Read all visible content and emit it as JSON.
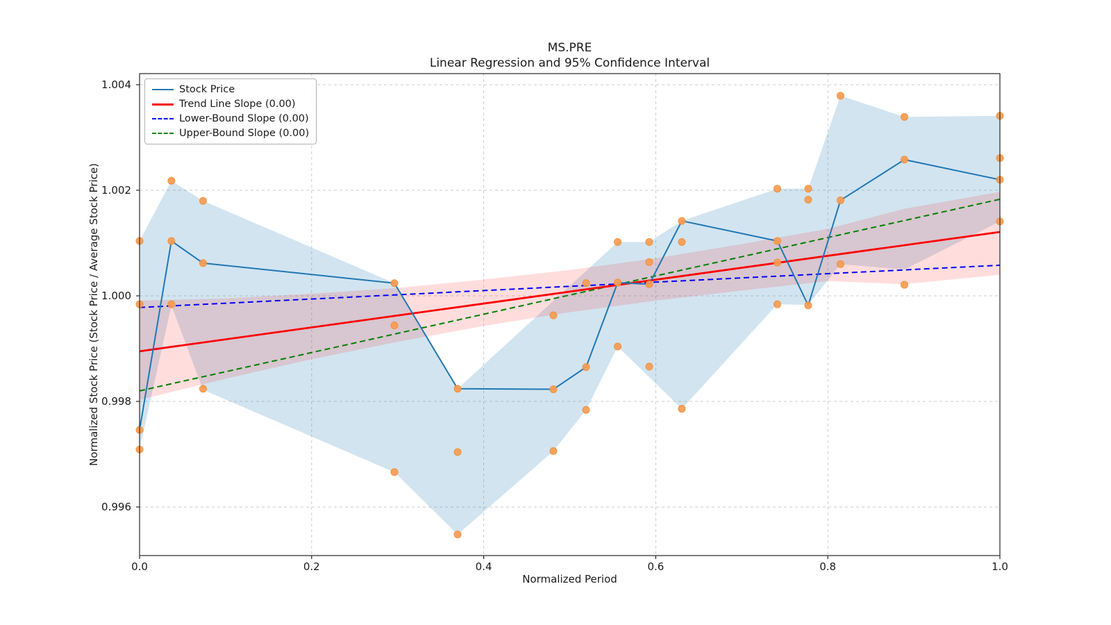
{
  "chart_data": {
    "type": "line",
    "title": "MS.PRE",
    "subtitle": "Linear Regression and 95% Confidence Interval",
    "xlabel": "Normalized Period",
    "ylabel": "Normalized Stock Price (Stock Price / Average Stock Price)",
    "xlim": [
      0,
      1
    ],
    "ylim": [
      0.99508,
      1.00421
    ],
    "xticks": [
      0.0,
      0.2,
      0.4,
      0.6,
      0.8,
      1.0
    ],
    "xtick_labels": [
      "0.0",
      "0.2",
      "0.4",
      "0.6",
      "0.8",
      "1.0"
    ],
    "yticks": [
      0.996,
      0.998,
      1.0,
      1.002,
      1.004
    ],
    "ytick_labels": [
      "0.996",
      "0.998",
      "1.000",
      "1.002",
      "1.004"
    ],
    "grid": true,
    "legend_position": "upper-left",
    "series": [
      {
        "name": "Stock Price",
        "color": "#1f77b4",
        "style": "solid",
        "width": 2,
        "x": [
          0,
          0.037,
          0.0738,
          0.2962,
          0.3697,
          0.481,
          0.519,
          0.5557,
          0.5924,
          0.6303,
          0.7413,
          0.7772,
          0.8147,
          0.889,
          1.0
        ],
        "y": [
          0.99746,
          1.00104,
          1.00062,
          1.00024,
          0.99824,
          0.99823,
          0.99865,
          1.00025,
          1.00022,
          1.00142,
          1.00104,
          0.99982,
          1.00181,
          1.00258,
          1.0022
        ]
      },
      {
        "name": "Trend Line Slope (0.00)",
        "color": "#ff0000",
        "style": "solid",
        "width": 2.8,
        "x": [
          0,
          1
        ],
        "y": [
          0.99895,
          1.00121
        ]
      },
      {
        "name": "Lower-Bound Slope (0.00)",
        "color": "#0000ff",
        "style": "dashed",
        "width": 2,
        "x": [
          0,
          1
        ],
        "y": [
          0.99978,
          1.00058
        ]
      },
      {
        "name": "Upper-Bound Slope (0.00)",
        "color": "#008000",
        "style": "dashed",
        "width": 2,
        "x": [
          0,
          1
        ],
        "y": [
          0.9982,
          1.00183
        ]
      }
    ],
    "scatter": {
      "name": "price-points",
      "color": "#f99c52",
      "edge_color": "#ef8d2f",
      "points": [
        [
          0,
          1.00104
        ],
        [
          0,
          0.99984
        ],
        [
          0,
          0.99746
        ],
        [
          0,
          0.99709
        ],
        [
          0.037,
          1.00218
        ],
        [
          0.037,
          1.00104
        ],
        [
          0.037,
          0.99984
        ],
        [
          0.0738,
          1.0018
        ],
        [
          0.0738,
          1.00062
        ],
        [
          0.0738,
          0.99824
        ],
        [
          0.2962,
          1.00024
        ],
        [
          0.2962,
          0.99944
        ],
        [
          0.2962,
          0.99666
        ],
        [
          0.3697,
          0.99824
        ],
        [
          0.3697,
          0.99704
        ],
        [
          0.3697,
          0.99548
        ],
        [
          0.481,
          0.99963
        ],
        [
          0.481,
          0.99823
        ],
        [
          0.481,
          0.99706
        ],
        [
          0.519,
          1.00024
        ],
        [
          0.519,
          0.99865
        ],
        [
          0.519,
          0.99784
        ],
        [
          0.5557,
          1.00102
        ],
        [
          0.5557,
          1.00025
        ],
        [
          0.5557,
          0.99904
        ],
        [
          0.5924,
          1.00102
        ],
        [
          0.5924,
          1.00064
        ],
        [
          0.5924,
          1.00022
        ],
        [
          0.5924,
          0.99866
        ],
        [
          0.6303,
          1.00142
        ],
        [
          0.6303,
          1.00102
        ],
        [
          0.6303,
          0.99786
        ],
        [
          0.7413,
          1.00203
        ],
        [
          0.7413,
          1.00104
        ],
        [
          0.7413,
          1.00063
        ],
        [
          0.7413,
          0.99984
        ],
        [
          0.7772,
          1.00203
        ],
        [
          0.7772,
          1.00182
        ],
        [
          0.7772,
          0.99982
        ],
        [
          0.8147,
          1.00379
        ],
        [
          0.8147,
          1.00181
        ],
        [
          0.8147,
          1.0006
        ],
        [
          0.889,
          1.00339
        ],
        [
          0.889,
          1.00258
        ],
        [
          0.889,
          1.00021
        ],
        [
          1.0,
          1.00341
        ],
        [
          1.0,
          1.00261
        ],
        [
          1.0,
          1.0022
        ],
        [
          1.0,
          1.00141
        ]
      ]
    },
    "bands": [
      {
        "name": "price-range-band",
        "color": "rgba(31,119,180,0.20)",
        "upper": [
          [
            0,
            1.00104
          ],
          [
            0.037,
            1.00218
          ],
          [
            0.0738,
            1.0018
          ],
          [
            0.2962,
            1.00024
          ],
          [
            0.3697,
            0.99824
          ],
          [
            0.5557,
            1.00102
          ],
          [
            0.5924,
            1.00102
          ],
          [
            0.6303,
            1.00142
          ],
          [
            0.7413,
            1.00203
          ],
          [
            0.7772,
            1.00203
          ],
          [
            0.8147,
            1.00379
          ],
          [
            0.889,
            1.00339
          ],
          [
            1.0,
            1.00341
          ]
        ],
        "lower": [
          [
            0,
            0.99709
          ],
          [
            0.037,
            0.99982
          ],
          [
            0.0738,
            0.99822
          ],
          [
            0.2962,
            0.99666
          ],
          [
            0.3697,
            0.99548
          ],
          [
            0.481,
            0.99706
          ],
          [
            0.519,
            0.99784
          ],
          [
            0.5557,
            0.99904
          ],
          [
            0.6303,
            0.99786
          ],
          [
            0.7413,
            0.99984
          ],
          [
            0.7772,
            0.99983
          ],
          [
            0.8147,
            1.0006
          ],
          [
            0.889,
            1.0005
          ],
          [
            1.0,
            1.00141
          ]
        ]
      },
      {
        "name": "confidence-band-95",
        "color": "rgba(255,25,25,0.15)",
        "upper": [
          [
            0,
            0.99991
          ],
          [
            0.1,
            0.99995
          ],
          [
            0.2,
            1.00004
          ],
          [
            0.3,
            1.00015
          ],
          [
            0.4,
            1.00031
          ],
          [
            0.5,
            1.00049
          ],
          [
            0.6,
            1.00071
          ],
          [
            0.7,
            1.00098
          ],
          [
            0.8,
            1.00127
          ],
          [
            0.889,
            1.00165
          ],
          [
            1.0,
            1.00197
          ]
        ],
        "lower": [
          [
            0,
            0.99803
          ],
          [
            0.1,
            0.99843
          ],
          [
            0.2,
            0.9988
          ],
          [
            0.3,
            0.99913
          ],
          [
            0.4,
            0.99943
          ],
          [
            0.5,
            0.99969
          ],
          [
            0.6,
            0.99991
          ],
          [
            0.7,
            1.0001
          ],
          [
            0.8,
            1.00028
          ],
          [
            0.889,
            1.00022
          ],
          [
            1.0,
            1.0004
          ]
        ]
      }
    ]
  }
}
